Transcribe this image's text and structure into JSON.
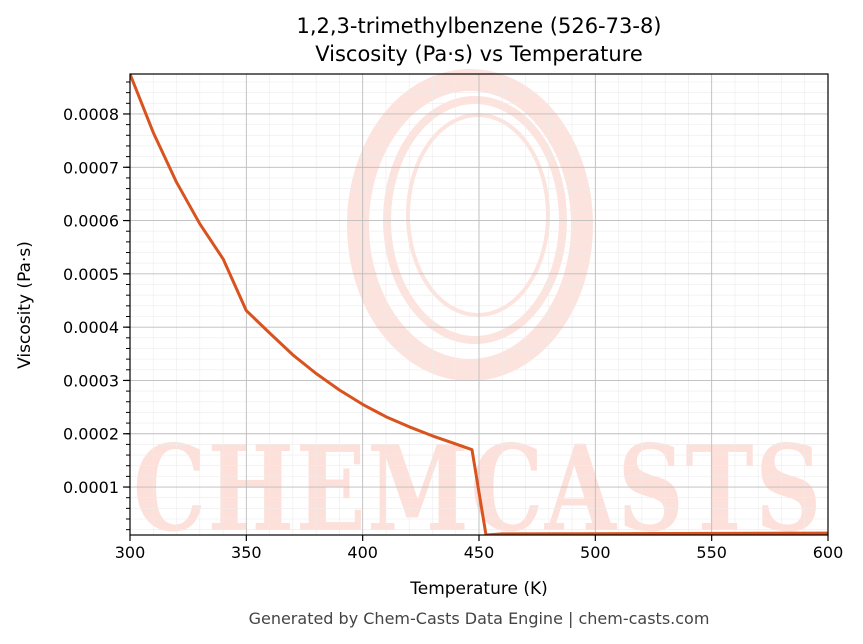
{
  "chart_data": {
    "type": "line",
    "title": "1,2,3-trimethylbenzene (526-73-8)",
    "subtitle": "Viscosity (Pa·s) vs Temperature",
    "xlabel": "Temperature (K)",
    "ylabel": "Viscosity (Pa·s)",
    "xlim": [
      300,
      600
    ],
    "ylim": [
      1e-05,
      0.000875
    ],
    "xticks": [
      "300",
      "350",
      "400",
      "450",
      "500",
      "550",
      "600"
    ],
    "yticks": [
      "0.0001",
      "0.0002",
      "0.0003",
      "0.0004",
      "0.0005",
      "0.0006",
      "0.0007",
      "0.0008"
    ],
    "grid": true,
    "series": [
      {
        "color": "#d9531e",
        "x": [
          300,
          310,
          320,
          330,
          340,
          350,
          360,
          370,
          380,
          390,
          400,
          410,
          420,
          430,
          440,
          447,
          453,
          460,
          500,
          550,
          600
        ],
        "y": [
          0.000875,
          0.000765,
          0.000672,
          0.000594,
          0.000528,
          0.000431,
          0.000389,
          0.000348,
          0.000313,
          0.000282,
          0.000255,
          0.000232,
          0.000213,
          0.000196,
          0.000181,
          0.00017,
          1e-05,
          1.2e-05,
          1.25e-05,
          1.3e-05,
          1.35e-05
        ]
      }
    ]
  },
  "watermark": {
    "text": "CHEMCASTS",
    "color": "#fde0da"
  },
  "footer": "Generated by Chem-Casts Data Engine | chem-casts.com"
}
